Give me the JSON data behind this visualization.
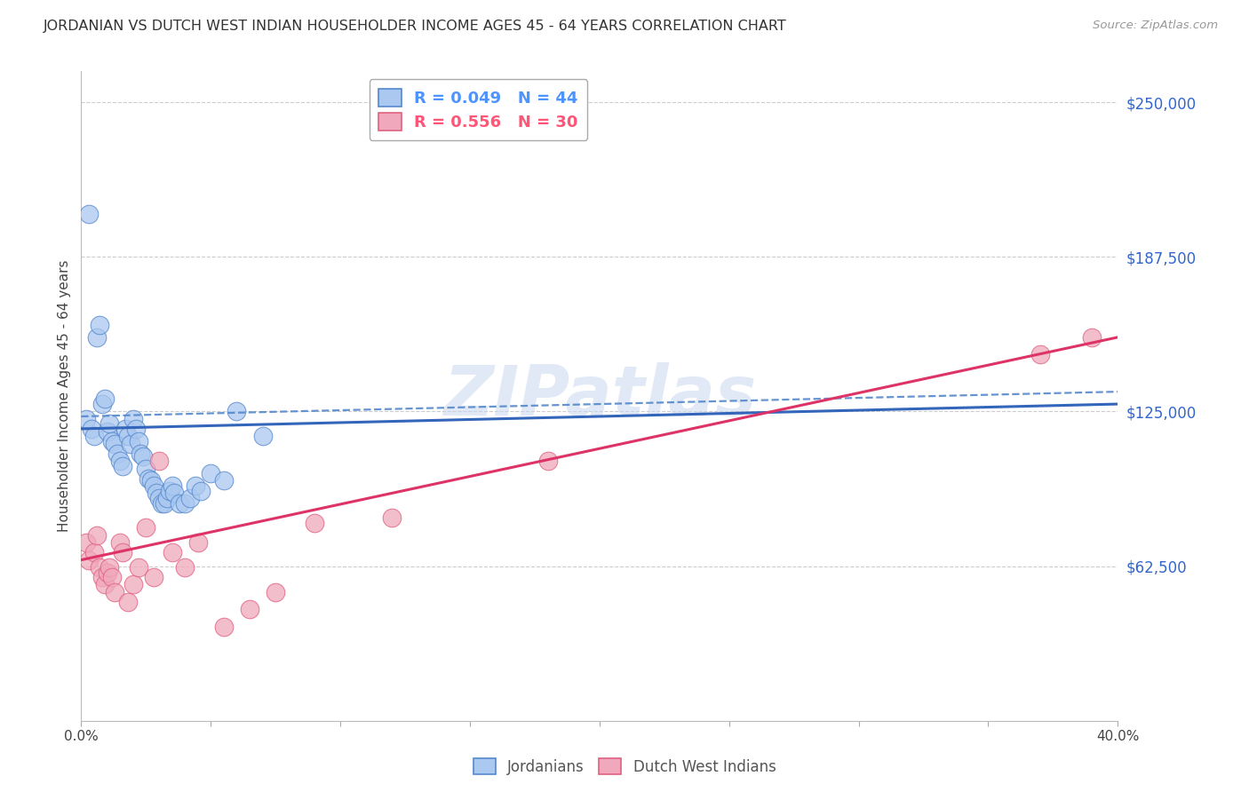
{
  "title": "JORDANIAN VS DUTCH WEST INDIAN HOUSEHOLDER INCOME AGES 45 - 64 YEARS CORRELATION CHART",
  "source": "Source: ZipAtlas.com",
  "ylabel": "Householder Income Ages 45 - 64 years",
  "yticks": [
    0,
    62500,
    125000,
    187500,
    250000
  ],
  "ytick_labels": [
    "",
    "$62,500",
    "$125,000",
    "$187,500",
    "$250,000"
  ],
  "xmin": 0.0,
  "xmax": 0.4,
  "ymin": 0,
  "ymax": 262500,
  "legend_entries": [
    {
      "label": "R = 0.049   N = 44",
      "color": "#4d94ff"
    },
    {
      "label": "R = 0.556   N = 30",
      "color": "#ff5577"
    }
  ],
  "legend_bottom": [
    "Jordanians",
    "Dutch West Indians"
  ],
  "jordanians_x": [
    0.002,
    0.003,
    0.004,
    0.005,
    0.006,
    0.007,
    0.008,
    0.009,
    0.01,
    0.011,
    0.012,
    0.013,
    0.014,
    0.015,
    0.016,
    0.017,
    0.018,
    0.019,
    0.02,
    0.021,
    0.022,
    0.023,
    0.024,
    0.025,
    0.026,
    0.027,
    0.028,
    0.029,
    0.03,
    0.031,
    0.032,
    0.033,
    0.034,
    0.035,
    0.036,
    0.038,
    0.04,
    0.042,
    0.044,
    0.046,
    0.05,
    0.055,
    0.06,
    0.07
  ],
  "jordanians_y": [
    122000,
    205000,
    118000,
    115000,
    155000,
    160000,
    128000,
    130000,
    117000,
    120000,
    113000,
    112000,
    108000,
    105000,
    103000,
    118000,
    115000,
    112000,
    122000,
    118000,
    113000,
    108000,
    107000,
    102000,
    98000,
    97000,
    95000,
    92000,
    90000,
    88000,
    88000,
    90000,
    93000,
    95000,
    92000,
    88000,
    88000,
    90000,
    95000,
    93000,
    100000,
    97000,
    125000,
    115000
  ],
  "dutch_x": [
    0.002,
    0.003,
    0.005,
    0.006,
    0.007,
    0.008,
    0.009,
    0.01,
    0.011,
    0.012,
    0.013,
    0.015,
    0.016,
    0.018,
    0.02,
    0.022,
    0.025,
    0.028,
    0.03,
    0.035,
    0.04,
    0.045,
    0.055,
    0.065,
    0.075,
    0.09,
    0.12,
    0.18,
    0.37,
    0.39
  ],
  "dutch_y": [
    72000,
    65000,
    68000,
    75000,
    62000,
    58000,
    55000,
    60000,
    62000,
    58000,
    52000,
    72000,
    68000,
    48000,
    55000,
    62000,
    78000,
    58000,
    105000,
    68000,
    62000,
    72000,
    38000,
    45000,
    52000,
    80000,
    82000,
    105000,
    148000,
    155000
  ],
  "blue_scatter_color": "#aac8f0",
  "blue_edge_color": "#5588cc",
  "pink_scatter_color": "#f0a8bc",
  "pink_edge_color": "#e06080",
  "blue_line_color": "#3366bb",
  "blue_dash_color": "#5588cc",
  "pink_line_color": "#dd3366",
  "watermark": "ZIPatlas",
  "watermark_color": "#c8d8ee",
  "background_color": "#ffffff",
  "grid_color": "#cccccc"
}
